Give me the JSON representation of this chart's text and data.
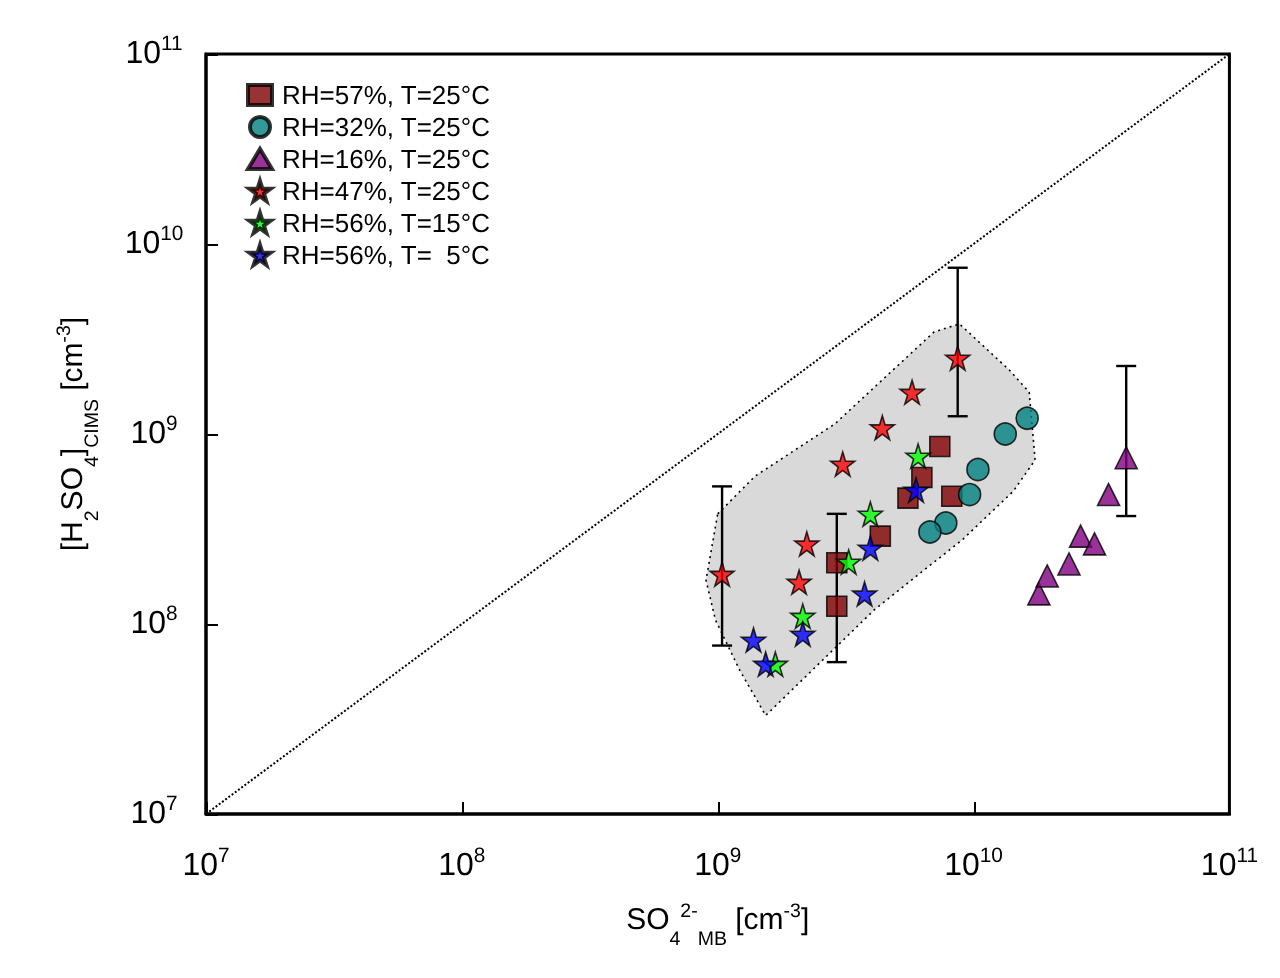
{
  "chart_data": {
    "type": "scatter",
    "xlabel": "SO$_{4}$$^{2-}$$_{MB}$ [cm$^{-3}$]",
    "ylabel": "[H$_{2}$SO$_{4}$]$_{CIMS}$ [cm$^{-3}$]",
    "log": "xy",
    "legend": "top left",
    "xlim": [
      10000000,
      100000000000
    ],
    "ylim": [
      10000000,
      100000000000
    ],
    "xticks": [
      {
        "value": 10000000,
        "label": "10$^{7}$"
      },
      {
        "value": 100000000,
        "label": "10$^{8}$"
      },
      {
        "value": 1000000000,
        "label": "10$^{9}$"
      },
      {
        "value": 10000000000,
        "label": "10$^{10}$"
      },
      {
        "value": 100000000000,
        "label": "10$^{11}$"
      }
    ],
    "yticks": [
      {
        "value": 10000000,
        "label": "10$^{7}$"
      },
      {
        "value": 100000000,
        "label": "10$^{8}$"
      },
      {
        "value": 1000000000,
        "label": "10$^{9}$"
      },
      {
        "value": 10000000000,
        "label": "10$^{10}$"
      },
      {
        "value": 100000000000,
        "label": "10$^{11}$"
      }
    ],
    "series": [
      {
        "type": "area",
        "color": "#d9d9d9",
        "x": [
          1000000000.0,
          1400000000.0,
          2870000000.0,
          7000000000.0,
          8800000000.0,
          13800000000.0,
          16500000000.0,
          17400000000.0,
          14300000000.0,
          9100000000.0,
          4100000000.0,
          1540000000.0,
          1220000000.0,
          980000000.0,
          900000000.0
        ],
        "values": [
          380000000.0,
          600000000.0,
          1130000000.0,
          3440000000.0,
          3800000000.0,
          2170000000.0,
          1660000000.0,
          730000000.0,
          500000000.0,
          280000000.0,
          119000000.0,
          33000000.0,
          57000000.0,
          105000000.0,
          170000000.0
        ]
      },
      {
        "type": "line",
        "color": "#000000",
        "line_style": "dotted",
        "marker": "none",
        "x": [
          10000000.0,
          100000000000.0
        ],
        "values": [
          10000000.0,
          100000000000.0
        ]
      },
      {
        "name": "RH=57%, T=25°C",
        "color": "#800000",
        "marker": "square",
        "x": [
          7380000000.0,
          6280000000.0,
          5540000000.0,
          8220000000.0,
          4320000000.0,
          2920000000.0,
          2920000000.0
        ],
        "values": [
          860000000.0,
          590000000.0,
          460000000.0,
          470000000.0,
          290000000.0,
          210000000.0,
          124000000.0
        ],
        "errors": [
          null,
          null,
          null,
          null,
          null,
          [
            63000000.0,
            380000000.0
          ],
          null
        ]
      },
      {
        "name": "RH=32%, T=25°C",
        "color": "#008080",
        "marker": "circle",
        "x": [
          16200000000.0,
          13300000000.0,
          10400000000.0,
          9650000000.0,
          7790000000.0,
          6750000000.0
        ],
        "values": [
          1210000000.0,
          1000000000.0,
          650000000.0,
          480000000.0,
          340000000.0,
          305000000.0
        ]
      },
      {
        "name": "RH=16%, T=25°C",
        "color": "#800080",
        "marker": "triangle",
        "x": [
          18000000000.0,
          19400000000.0,
          23600000000.0,
          26200000000.0,
          29700000000.0,
          33700000000.0,
          39500000000.0
        ],
        "values": [
          144000000.0,
          179000000.0,
          207000000.0,
          290000000.0,
          264000000.0,
          480000000.0,
          750000000.0
        ],
        "errors": [
          null,
          null,
          null,
          null,
          null,
          null,
          [
            370000000.0,
            2280000000.0
          ]
        ]
      },
      {
        "name": "RH=47%, T=25°C",
        "color": "#ff0000",
        "marker": "star",
        "x": [
          1040000000.0,
          2230000000.0,
          2080000000.0,
          3080000000.0,
          4400000000.0,
          5750000000.0,
          8670000000.0
        ],
        "values": [
          183000000.0,
          264000000.0,
          166000000.0,
          695000000.0,
          1080000000.0,
          1660000000.0,
          2510000000.0
        ],
        "errors": [
          [
            77000000.0,
            530000000.0
          ],
          null,
          null,
          null,
          null,
          null,
          [
            1240000000.0,
            7500000000.0
          ]
        ]
      },
      {
        "name": "RH=56%, T=15°C",
        "color": "#00ff00",
        "marker": "star",
        "x": [
          6070000000.0,
          3950000000.0,
          3250000000.0,
          2150000000.0,
          1680000000.0
        ],
        "values": [
          766000000.0,
          379000000.0,
          212000000.0,
          110000000.0,
          61500000.0
        ]
      },
      {
        "name": "RH=56%, T=  5°C",
        "color": "#0000ff",
        "marker": "star",
        "x": [
          5960000000.0,
          3950000000.0,
          3750000000.0,
          2150000000.0,
          1380000000.0,
          1540000000.0
        ],
        "values": [
          507000000.0,
          251000000.0,
          144000000.0,
          88600000.0,
          82400000.0,
          61500000.0
        ]
      }
    ]
  }
}
